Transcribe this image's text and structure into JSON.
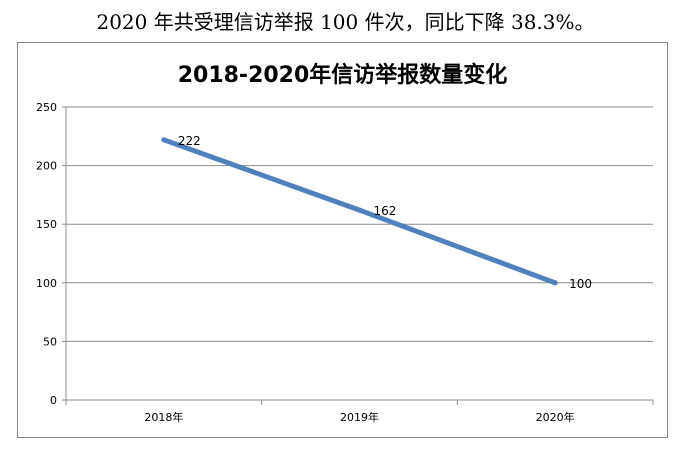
{
  "caption": "2020 年共受理信访举报 100 件次，同比下降 38.3%。",
  "chart_data": {
    "type": "line",
    "title": "2018-2020年信访举报数量变化",
    "categories": [
      "2018年",
      "2019年",
      "2020年"
    ],
    "values": [
      222,
      162,
      100
    ],
    "data_labels": [
      "222",
      "162",
      "100"
    ],
    "yticks": [
      "0",
      "50",
      "100",
      "150",
      "200",
      "250"
    ],
    "ylim": [
      0,
      250
    ],
    "grid": true,
    "legend": "none",
    "line_color": "#4f81bd",
    "grid_color": "#8c8c8c"
  }
}
